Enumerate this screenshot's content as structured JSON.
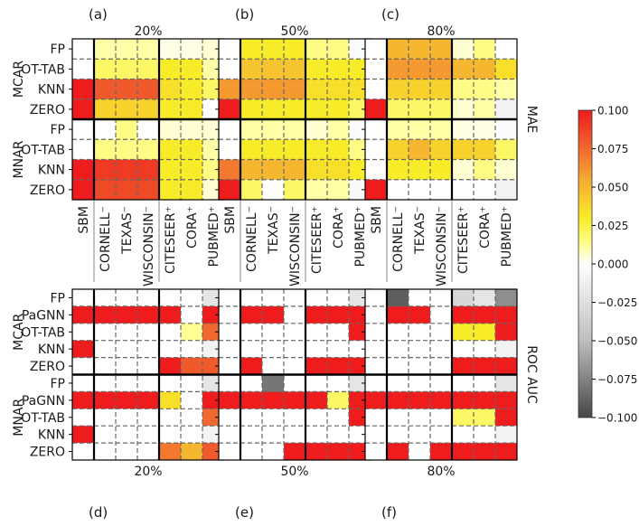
{
  "chart_data": {
    "type": "heatmap",
    "methods_top": [
      "FP",
      "OT-TAB",
      "KNN",
      "ZERO"
    ],
    "methods_bottom": [
      "FP",
      "PaGNN",
      "OT-TAB",
      "KNN",
      "ZERO"
    ],
    "mechanisms": [
      "MCAR",
      "MNAR"
    ],
    "datasets": [
      "SBM",
      "CORNELL⁻",
      "TEXAS⁻",
      "WISCONSIN⁻",
      "CITESEER⁺",
      "CORA⁺",
      "PUBMED⁺"
    ],
    "panel_letters_top": [
      "(a)",
      "(b)",
      "(c)"
    ],
    "panel_letters_bottom": [
      "(d)",
      "(e)",
      "(f)"
    ],
    "rates": [
      "20%",
      "50%",
      "80%"
    ],
    "metric_top": "MAE",
    "metric_bottom": "ROC AUC",
    "colorbar": {
      "min": -0.1,
      "max": 0.1,
      "ticks": [
        "0.100",
        "0.075",
        "0.050",
        "0.025",
        "0.000",
        "−0.025",
        "−0.050",
        "−0.075",
        "−0.100"
      ],
      "tick_values": [
        0.1,
        0.075,
        0.05,
        0.025,
        0,
        -0.025,
        -0.05,
        -0.075,
        -0.1
      ]
    },
    "mae": [
      [
        [
          0,
          0.01,
          0.01,
          0.01,
          0.003,
          0.003,
          0.005
        ],
        [
          0,
          0.02,
          0.02,
          0.02,
          0.03,
          0.03,
          0.01
        ],
        [
          0.1,
          0.08,
          0.08,
          0.08,
          0.035,
          0.03,
          0.02
        ],
        [
          0.1,
          0.04,
          0.04,
          0.04,
          0.03,
          0.03,
          0.0
        ],
        [
          0,
          0.0,
          0.015,
          0.0,
          0.005,
          0.005,
          0.005
        ],
        [
          0,
          0.015,
          0.015,
          0.015,
          0.03,
          0.03,
          0.01
        ],
        [
          0.1,
          0.09,
          0.09,
          0.09,
          0.03,
          0.03,
          0.015
        ],
        [
          0.1,
          0.085,
          0.085,
          0.085,
          0.03,
          0.03,
          0.005
        ]
      ],
      [
        [
          0,
          0.03,
          0.03,
          0.03,
          0.015,
          0.015,
          -0.003
        ],
        [
          0,
          0.045,
          0.045,
          0.045,
          0.03,
          0.03,
          0.03
        ],
        [
          0.06,
          0.06,
          0.06,
          0.06,
          0.035,
          0.035,
          0.035
        ],
        [
          0.1,
          0.03,
          0.03,
          0.03,
          0.03,
          0.03,
          0.02
        ],
        [
          0,
          0.01,
          0.01,
          0.01,
          0.005,
          0.01,
          -0.003
        ],
        [
          0,
          0.03,
          0.03,
          0.03,
          0.03,
          0.03,
          0.015
        ],
        [
          0.07,
          0.05,
          0.05,
          0.05,
          0.035,
          0.035,
          0.03
        ],
        [
          0.1,
          0.02,
          0.0,
          0.02,
          0.01,
          0.01,
          -0.005
        ]
      ],
      [
        [
          0,
          0.05,
          0.05,
          0.05,
          0.005,
          0.015,
          0.0
        ],
        [
          0,
          0.06,
          0.06,
          0.06,
          0.05,
          0.05,
          0.035
        ],
        [
          0,
          0.04,
          0.04,
          0.04,
          0.015,
          0.015,
          0.01
        ],
        [
          0.1,
          0.02,
          0.02,
          0.02,
          0.005,
          0.01,
          -0.01
        ],
        [
          0,
          0.01,
          0.01,
          0.01,
          0.003,
          0.003,
          -0.003
        ],
        [
          0,
          0.04,
          0.05,
          0.04,
          0.04,
          0.04,
          0.02
        ],
        [
          0,
          0.03,
          0.03,
          0.03,
          0.005,
          0.015,
          0.005
        ],
        [
          0.1,
          0.0,
          0.0,
          0.0,
          0.0,
          0.0,
          -0.01
        ]
      ]
    ],
    "roc": [
      [
        [
          0,
          0,
          0,
          0,
          0,
          0,
          -0.02
        ],
        [
          0.1,
          0.1,
          0.1,
          0.1,
          0.1,
          0,
          0.1
        ],
        [
          0,
          0,
          0,
          0,
          0,
          0.012,
          0.075
        ],
        [
          0.1,
          0,
          0,
          0,
          0,
          0,
          -0.01
        ],
        [
          0,
          0,
          0,
          0,
          0.1,
          0.08,
          0.08
        ],
        [
          0,
          0,
          0,
          0,
          0,
          0,
          -0.02
        ],
        [
          0.1,
          0.1,
          0.1,
          0.1,
          0.035,
          0,
          0.1
        ],
        [
          0,
          0,
          0,
          0,
          0,
          0,
          0.075
        ],
        [
          0.1,
          0,
          0,
          0,
          0,
          0,
          -0.01
        ],
        [
          0,
          0,
          0,
          0,
          0.07,
          0.05,
          0.08
        ]
      ],
      [
        [
          0,
          0,
          0,
          0,
          0,
          0,
          -0.02
        ],
        [
          0,
          0.1,
          0.1,
          0,
          0.1,
          0.1,
          0.1
        ],
        [
          0,
          0,
          0,
          0,
          0,
          0,
          0.1
        ],
        [
          0,
          0,
          0,
          0,
          0,
          0,
          0
        ],
        [
          0,
          0.1,
          0,
          0,
          0.1,
          0.1,
          0.1
        ],
        [
          0,
          0,
          -0.08,
          0,
          0,
          0,
          -0.02
        ],
        [
          0.1,
          0.1,
          0.1,
          0.1,
          0.1,
          0.02,
          0.1
        ],
        [
          0,
          0,
          0,
          0,
          0,
          0,
          0.1
        ],
        [
          0,
          0,
          0,
          0,
          0,
          0,
          0
        ],
        [
          0,
          0,
          0,
          0.1,
          0.1,
          0.1,
          0.1
        ]
      ],
      [
        [
          0,
          -0.09,
          0,
          0,
          -0.03,
          -0.02,
          -0.07
        ],
        [
          0,
          0.1,
          0.1,
          0,
          0.1,
          0.1,
          0.1
        ],
        [
          0,
          0,
          0,
          0,
          0.03,
          0.03,
          0.1
        ],
        [
          0,
          0,
          0,
          0,
          0,
          0,
          -0.01
        ],
        [
          0,
          0,
          0,
          0,
          0.1,
          0.1,
          0.1
        ],
        [
          0,
          0,
          0,
          0,
          0,
          0,
          -0.02
        ],
        [
          0.1,
          0.1,
          0.1,
          0.1,
          0.1,
          0.1,
          0.1
        ],
        [
          0,
          0,
          0,
          0,
          0.02,
          0.02,
          0.1
        ],
        [
          0,
          0,
          0,
          0,
          0,
          0,
          -0.01
        ],
        [
          0,
          0.1,
          0,
          0.1,
          0.1,
          0.1,
          0.1
        ]
      ]
    ]
  }
}
